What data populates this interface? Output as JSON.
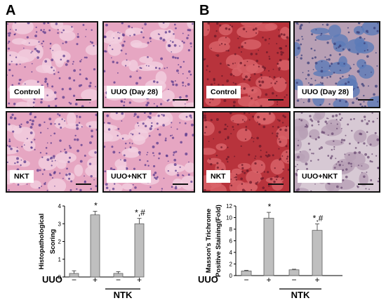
{
  "panels": {
    "a": {
      "letter": "A"
    },
    "b": {
      "letter": "B"
    }
  },
  "micrographs": {
    "he": {
      "control": "Control",
      "uuo": "UUO (Day 28)",
      "nkt": "NKT",
      "uuo_nkt": "UUO+NKT"
    },
    "masson": {
      "control": "Control",
      "uuo": "UUO (Day 28)",
      "nkt": "NKT",
      "uuo_nkt": "UUO+NKT"
    }
  },
  "colors": {
    "he_pink": "#e6a6c2",
    "he_nuclei": "#5a3a8c",
    "masson_red": "#b8333c",
    "masson_blue": "#5b7ab8",
    "masson_purple": "#b8a0b5",
    "bar_fill": "#bfbfbf",
    "bar_stroke": "#606060"
  },
  "chart_data": [
    {
      "type": "bar",
      "ylabel_lines": [
        "Histopathological",
        "Scoring"
      ],
      "ylim": [
        0,
        4
      ],
      "yticks": [
        "0",
        "1",
        "2",
        "3",
        "4"
      ],
      "values": [
        0.2,
        3.5,
        0.2,
        3.0
      ],
      "errors": [
        0.15,
        0.2,
        0.1,
        0.3
      ],
      "uuo_label": "UUO",
      "uuo_signs": [
        "−",
        "+",
        "−",
        "+"
      ],
      "group_label": "NTK",
      "annotations": [
        "",
        "*",
        "",
        "*,#"
      ]
    },
    {
      "type": "bar",
      "ylabel_lines": [
        "Masson's Trichrome",
        "Positive Staining(Fold)"
      ],
      "ylim": [
        0,
        12
      ],
      "yticks": [
        "0",
        "2",
        "4",
        "6",
        "8",
        "10",
        "12"
      ],
      "values": [
        0.8,
        9.9,
        1.0,
        7.8
      ],
      "errors": [
        0.1,
        1.0,
        0.1,
        1.1
      ],
      "uuo_label": "UUO",
      "uuo_signs": [
        "−",
        "+",
        "−",
        "+"
      ],
      "group_label": "NTK",
      "annotations": [
        "",
        "*",
        "",
        "*,#"
      ]
    }
  ]
}
